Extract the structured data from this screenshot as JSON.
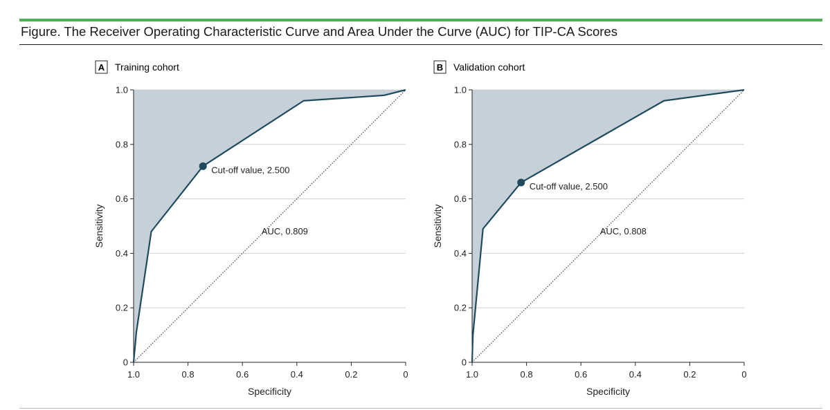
{
  "figure": {
    "title": "Figure. The Receiver Operating Characteristic Curve and Area Under the Curve (AUC) for TIP-CA Scores",
    "accent_color": "#4caf50",
    "curve_color": "#1f4a5c",
    "shade_color": "#c5d0d9"
  },
  "chart_data": [
    {
      "type": "line",
      "panel_letter": "A",
      "title": "Training cohort",
      "xlabel": "Specificity",
      "ylabel": "Sensitivity",
      "xlim": [
        1.0,
        0
      ],
      "ylim": [
        0,
        1.0
      ],
      "x_ticks": [
        "1.0",
        "0.8",
        "0.6",
        "0.4",
        "0.2",
        "0"
      ],
      "y_ticks": [
        "0",
        "0.2",
        "0.4",
        "0.6",
        "0.8",
        "1.0"
      ],
      "series": [
        {
          "name": "ROC",
          "specificity": [
            1.0,
            0.99,
            0.935,
            0.745,
            0.375,
            0.08,
            0.0
          ],
          "sensitivity": [
            0.0,
            0.11,
            0.48,
            0.72,
            0.96,
            0.98,
            1.0
          ]
        }
      ],
      "cutoff_point": {
        "specificity": 0.745,
        "sensitivity": 0.72
      },
      "cutoff_label": "Cut-off value, 2.500",
      "auc_label": "AUC, 0.809"
    },
    {
      "type": "line",
      "panel_letter": "B",
      "title": "Validation cohort",
      "xlabel": "Specificity",
      "ylabel": "Sensitivity",
      "xlim": [
        1.0,
        0
      ],
      "ylim": [
        0,
        1.0
      ],
      "x_ticks": [
        "1.0",
        "0.8",
        "0.6",
        "0.4",
        "0.2",
        "0"
      ],
      "y_ticks": [
        "0",
        "0.2",
        "0.4",
        "0.6",
        "0.8",
        "1.0"
      ],
      "series": [
        {
          "name": "ROC",
          "specificity": [
            1.0,
            0.997,
            0.96,
            0.82,
            0.295,
            0.0
          ],
          "sensitivity": [
            0.0,
            0.1,
            0.49,
            0.66,
            0.96,
            1.0
          ]
        }
      ],
      "cutoff_point": {
        "specificity": 0.82,
        "sensitivity": 0.66
      },
      "cutoff_label": "Cut-off value, 2.500",
      "auc_label": "AUC, 0.808"
    }
  ]
}
